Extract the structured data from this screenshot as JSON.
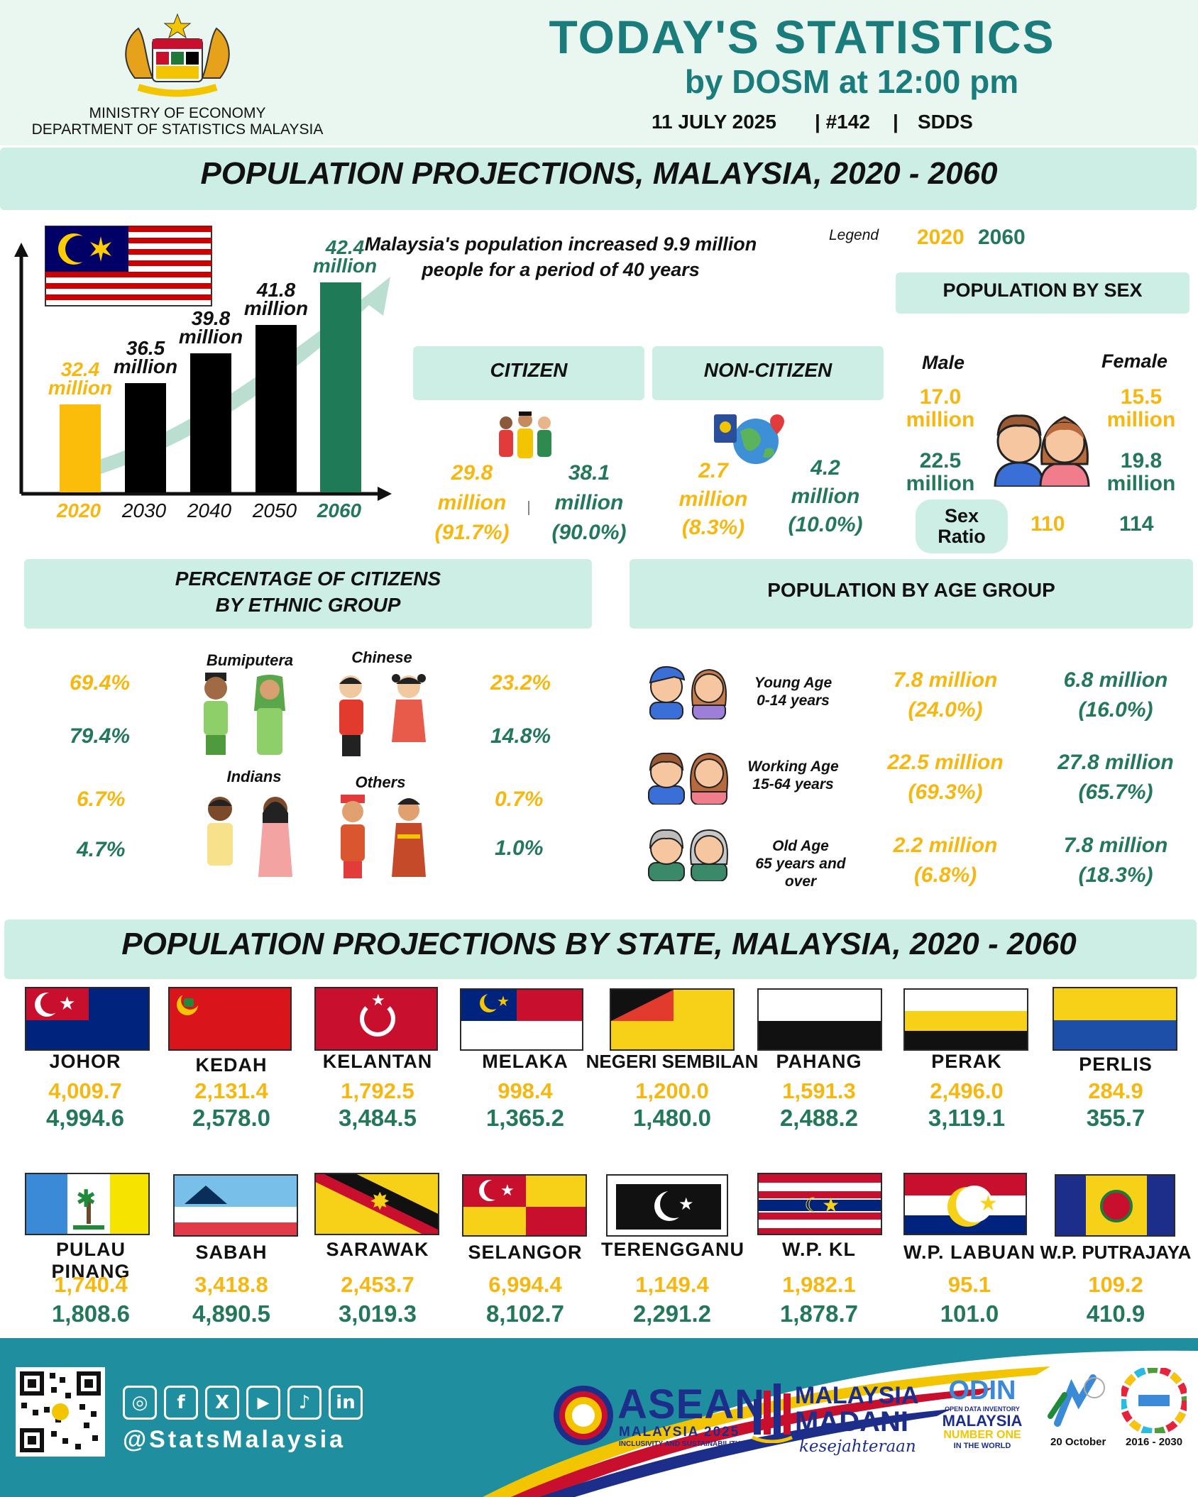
{
  "header": {
    "ministry": "MINISTRY OF ECONOMY",
    "department": "DEPARTMENT OF STATISTICS MALAYSIA",
    "title": "TODAY'S STATISTICS",
    "subtitle": "by DOSM at 12:00 pm",
    "date": "11 JULY 2025",
    "issue": "| #142",
    "sep": "|",
    "series": "SDDS"
  },
  "section1": {
    "title": "POPULATION PROJECTIONS, MALAYSIA, 2020 - 2060",
    "summary_line1": "Malaysia's population increased 9.9 million",
    "summary_line2": "people for a period of 40 years",
    "legend_label": "Legend",
    "legend_2020": "2020",
    "legend_2060": "2060"
  },
  "chart_data": {
    "type": "bar",
    "categories": [
      "2020",
      "2030",
      "2040",
      "2050",
      "2060"
    ],
    "values": [
      32.4,
      36.5,
      39.8,
      41.8,
      42.4
    ],
    "labels": [
      [
        "32.4",
        "million"
      ],
      [
        "36.5",
        "million"
      ],
      [
        "39.8",
        "million"
      ],
      [
        "41.8",
        "million"
      ],
      [
        "42.4",
        "million"
      ]
    ],
    "colors": [
      "#fbbd0a",
      "#000000",
      "#000000",
      "#000000",
      "#1f7a57"
    ],
    "tick_colors": [
      "#f6b810",
      "#111111",
      "#111111",
      "#111111",
      "#24785a"
    ]
  },
  "citizen": {
    "title": "CITIZEN",
    "v2020": [
      "29.8",
      "million",
      "(91.7%)"
    ],
    "v2060": [
      "38.1",
      "million",
      "(90.0%)"
    ]
  },
  "noncitizen": {
    "title": "NON-CITIZEN",
    "v2020": [
      "2.7",
      "million",
      "(8.3%)"
    ],
    "v2060": [
      "4.2",
      "million",
      "(10.0%)"
    ]
  },
  "sex": {
    "title": "POPULATION BY SEX",
    "male_label": "Male",
    "female_label": "Female",
    "male_2020": [
      "17.0",
      "million"
    ],
    "female_2020": [
      "15.5",
      "million"
    ],
    "male_2060": [
      "22.5",
      "million"
    ],
    "female_2060": [
      "19.8",
      "million"
    ],
    "ratio_label": [
      "Sex",
      "Ratio"
    ],
    "ratio_2020": "110",
    "ratio_2060": "114"
  },
  "ethnic": {
    "title_line1": "PERCENTAGE OF CITIZENS",
    "title_line2": "BY ETHNIC GROUP",
    "bumiputera": {
      "label": "Bumiputera",
      "v2020": "69.4%",
      "v2060": "79.4%"
    },
    "chinese": {
      "label": "Chinese",
      "v2020": "23.2%",
      "v2060": "14.8%"
    },
    "indians": {
      "label": "Indians",
      "v2020": "6.7%",
      "v2060": "4.7%"
    },
    "others": {
      "label": "Others",
      "v2020": "0.7%",
      "v2060": "1.0%"
    }
  },
  "age": {
    "title": "POPULATION BY AGE GROUP",
    "young": {
      "label1": "Young Age",
      "label2": "0-14 years",
      "v2020": "7.8 million",
      "p2020": "(24.0%)",
      "v2060": "6.8 million",
      "p2060": "(16.0%)"
    },
    "working": {
      "label1": "Working Age",
      "label2": "15-64 years",
      "v2020": "22.5 million",
      "p2020": "(69.3%)",
      "v2060": "27.8 million",
      "p2060": "(65.7%)"
    },
    "old": {
      "label1": "Old Age",
      "label2": "65 years and",
      "label3": "over",
      "v2020": "2.2 million",
      "p2020": "(6.8%)",
      "v2060": "7.8 million",
      "p2060": "(18.3%)"
    }
  },
  "section2": {
    "title": "POPULATION PROJECTIONS BY STATE, MALAYSIA, 2020 - 2060"
  },
  "states_row1": [
    {
      "name": "JOHOR",
      "v2020": "4,009.7",
      "v2060": "4,994.6"
    },
    {
      "name": "KEDAH",
      "v2020": "2,131.4",
      "v2060": "2,578.0"
    },
    {
      "name": "KELANTAN",
      "v2020": "1,792.5",
      "v2060": "3,484.5"
    },
    {
      "name": "MELAKA",
      "v2020": "998.4",
      "v2060": "1,365.2"
    },
    {
      "name": "NEGERI SEMBILAN",
      "v2020": "1,200.0",
      "v2060": "1,480.0"
    },
    {
      "name": "PAHANG",
      "v2020": "1,591.3",
      "v2060": "2,488.2"
    },
    {
      "name": "PERAK",
      "v2020": "2,496.0",
      "v2060": "3,119.1"
    },
    {
      "name": "PERLIS",
      "v2020": "284.9",
      "v2060": "355.7"
    }
  ],
  "states_row2": [
    {
      "name": "PULAU PINANG",
      "v2020": "1,740.4",
      "v2060": "1,808.6"
    },
    {
      "name": "SABAH",
      "v2020": "3,418.8",
      "v2060": "4,890.5"
    },
    {
      "name": "SARAWAK",
      "v2020": "2,453.7",
      "v2060": "3,019.3"
    },
    {
      "name": "SELANGOR",
      "v2020": "6,994.4",
      "v2060": "8,102.7"
    },
    {
      "name": "TERENGGANU",
      "v2020": "1,149.4",
      "v2060": "2,291.2"
    },
    {
      "name": "W.P. KL",
      "v2020": "1,982.1",
      "v2060": "1,878.7"
    },
    {
      "name": "W.P. LABUAN",
      "v2020": "95.1",
      "v2060": "101.0"
    },
    {
      "name": "W.P. PUTRAJAYA",
      "v2020": "109.2",
      "v2060": "410.9"
    }
  ],
  "footer": {
    "handle": "@StatsMalaysia",
    "asean": "ASEAN",
    "asean_sub": "MALAYSIA 2025",
    "asean_tag": "INCLUSIVITY AND SUSTAINABILITY",
    "madani1": "MALAYSIA",
    "madani2": "MADANI",
    "madani3": "kesejahteraan",
    "odin1": "ODIN",
    "odin2": "OPEN DATA INVENTORY",
    "odin3": "MALAYSIA",
    "odin4": "NUMBER ONE",
    "odin5": "IN THE WORLD",
    "stats_day": "20 October",
    "sdg": "2016 - 2030"
  }
}
